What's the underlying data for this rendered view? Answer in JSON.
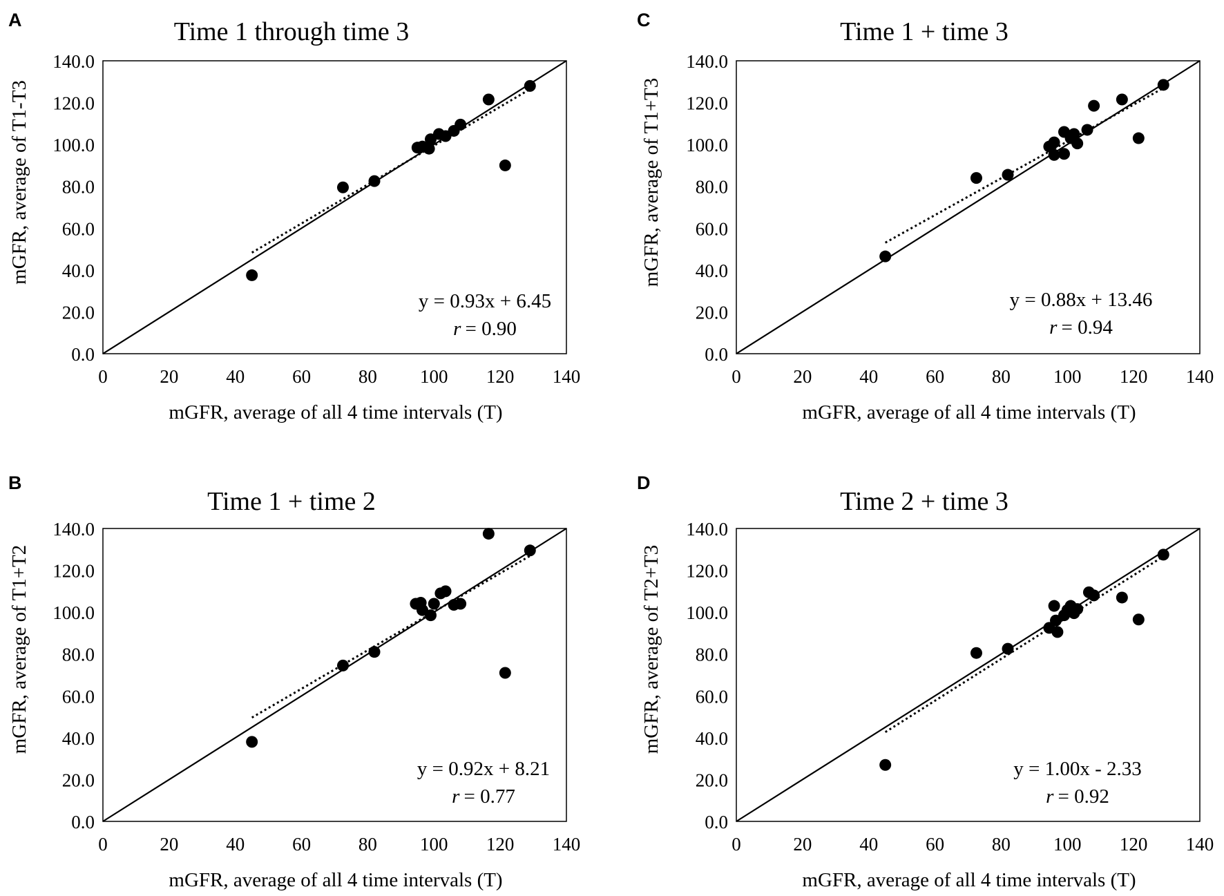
{
  "figure": {
    "panels": [
      {
        "letter": "A",
        "eq_pre": "y = ",
        "eq_slope": "0.93",
        "eq_sign": " + ",
        "eq_int": "6.45",
        "r_label": "r",
        "r_value": "= 0.90"
      },
      {
        "letter": "C",
        "eq_pre": "y = ",
        "eq_slope": "0.88",
        "eq_sign": " + ",
        "eq_int": "13.46",
        "r_label": "r",
        "r_value": "= 0.94"
      },
      {
        "letter": "B",
        "eq_pre": "y = ",
        "eq_slope": "0.92",
        "eq_sign": " + ",
        "eq_int": "8.21",
        "r_label": "r",
        "r_value": "= 0.77"
      },
      {
        "letter": "D",
        "eq_pre": "y = ",
        "eq_slope": "1.00",
        "eq_sign": " - ",
        "eq_int": "2.33",
        "r_label": "r",
        "r_value": "= 0.92"
      }
    ]
  },
  "chart_data": [
    {
      "type": "scatter",
      "title": "Time 1 through time 3",
      "xlabel": "mGFR, average of all 4 time intervals (T)",
      "ylabel": "mGFR, average of T1-T3",
      "xlim": [
        0,
        140
      ],
      "ylim": [
        0,
        140
      ],
      "xticks": [
        "0",
        "20",
        "40",
        "60",
        "80",
        "100",
        "120",
        "140"
      ],
      "yticks": [
        "0.0",
        "20.0",
        "40.0",
        "60.0",
        "80.0",
        "100.0",
        "120.0",
        "140.0"
      ],
      "equation": "y = 0.93x + 6.45",
      "r": "0.90",
      "identity_line": true,
      "trendline": {
        "slope": 0.93,
        "intercept": 6.45,
        "x_range": [
          45,
          129
        ]
      },
      "points": [
        {
          "x": 45,
          "y": 37.5
        },
        {
          "x": 72.5,
          "y": 79.5
        },
        {
          "x": 82,
          "y": 82.5
        },
        {
          "x": 95,
          "y": 98.5
        },
        {
          "x": 96.5,
          "y": 99
        },
        {
          "x": 98.5,
          "y": 98
        },
        {
          "x": 99,
          "y": 102.5
        },
        {
          "x": 101.5,
          "y": 105
        },
        {
          "x": 103.5,
          "y": 104
        },
        {
          "x": 106,
          "y": 106.5
        },
        {
          "x": 108,
          "y": 109.5
        },
        {
          "x": 116.5,
          "y": 121.5
        },
        {
          "x": 121.5,
          "y": 90
        },
        {
          "x": 129,
          "y": 128
        }
      ]
    },
    {
      "type": "scatter",
      "title": "Time 1 + time 3",
      "xlabel": "mGFR, average of all 4 time intervals (T)",
      "ylabel": "mGFR, average of T1+T3",
      "xlim": [
        0,
        140
      ],
      "ylim": [
        0,
        140
      ],
      "xticks": [
        "0",
        "20",
        "40",
        "60",
        "80",
        "100",
        "120",
        "140"
      ],
      "yticks": [
        "0.0",
        "20.0",
        "40.0",
        "60.0",
        "80.0",
        "100.0",
        "120.0",
        "140.0"
      ],
      "equation": "y = 0.88x + 13.46",
      "r": "0.94",
      "identity_line": true,
      "trendline": {
        "slope": 0.88,
        "intercept": 13.46,
        "x_range": [
          45,
          129
        ]
      },
      "points": [
        {
          "x": 45,
          "y": 46.5
        },
        {
          "x": 72.5,
          "y": 84
        },
        {
          "x": 82,
          "y": 85.5
        },
        {
          "x": 94.5,
          "y": 99
        },
        {
          "x": 96,
          "y": 101
        },
        {
          "x": 96,
          "y": 95
        },
        {
          "x": 99,
          "y": 106
        },
        {
          "x": 99,
          "y": 95.5
        },
        {
          "x": 101,
          "y": 103
        },
        {
          "x": 102,
          "y": 105
        },
        {
          "x": 103,
          "y": 100.5
        },
        {
          "x": 106,
          "y": 107
        },
        {
          "x": 108,
          "y": 118.5
        },
        {
          "x": 116.5,
          "y": 121.5
        },
        {
          "x": 121.5,
          "y": 103
        },
        {
          "x": 129,
          "y": 128.5
        }
      ]
    },
    {
      "type": "scatter",
      "title": "Time 1 + time 2",
      "xlabel": "mGFR, average of all 4 time intervals (T)",
      "ylabel": "mGFR, average of T1+T2",
      "xlim": [
        0,
        140
      ],
      "ylim": [
        0,
        140
      ],
      "xticks": [
        "0",
        "20",
        "40",
        "60",
        "80",
        "100",
        "120",
        "140"
      ],
      "yticks": [
        "0.0",
        "20.0",
        "40.0",
        "60.0",
        "80.0",
        "100.0",
        "120.0",
        "140.0"
      ],
      "equation": "y = 0.92x + 8.21",
      "r": "0.77",
      "identity_line": true,
      "trendline": {
        "slope": 0.92,
        "intercept": 8.21,
        "x_range": [
          45,
          129
        ]
      },
      "points": [
        {
          "x": 45,
          "y": 38
        },
        {
          "x": 72.5,
          "y": 74.5
        },
        {
          "x": 82,
          "y": 81
        },
        {
          "x": 94.5,
          "y": 104
        },
        {
          "x": 96,
          "y": 104.5
        },
        {
          "x": 96.5,
          "y": 101
        },
        {
          "x": 99,
          "y": 98.5
        },
        {
          "x": 100,
          "y": 104
        },
        {
          "x": 102,
          "y": 109
        },
        {
          "x": 103.5,
          "y": 110
        },
        {
          "x": 106,
          "y": 103.5
        },
        {
          "x": 108,
          "y": 104
        },
        {
          "x": 116.5,
          "y": 137.5
        },
        {
          "x": 121.5,
          "y": 71
        },
        {
          "x": 129,
          "y": 129.5
        }
      ]
    },
    {
      "type": "scatter",
      "title": "Time 2 + time 3",
      "xlabel": "mGFR, average of all 4 time intervals (T)",
      "ylabel": "mGFR, average of T2+T3",
      "xlim": [
        0,
        140
      ],
      "ylim": [
        0,
        140
      ],
      "xticks": [
        "0",
        "20",
        "40",
        "60",
        "80",
        "100",
        "120",
        "140"
      ],
      "yticks": [
        "0.0",
        "20.0",
        "40.0",
        "60.0",
        "80.0",
        "100.0",
        "120.0",
        "140.0"
      ],
      "equation": "y = 1.00x - 2.33",
      "r": "0.92",
      "identity_line": true,
      "trendline": {
        "slope": 1.0,
        "intercept": -2.33,
        "x_range": [
          45,
          129
        ]
      },
      "points": [
        {
          "x": 45,
          "y": 27
        },
        {
          "x": 72.5,
          "y": 80.5
        },
        {
          "x": 82,
          "y": 82.5
        },
        {
          "x": 94.5,
          "y": 92.5
        },
        {
          "x": 96,
          "y": 103
        },
        {
          "x": 96.5,
          "y": 96
        },
        {
          "x": 97,
          "y": 90.5
        },
        {
          "x": 99,
          "y": 98.5
        },
        {
          "x": 100,
          "y": 101
        },
        {
          "x": 101,
          "y": 103
        },
        {
          "x": 102,
          "y": 99.5
        },
        {
          "x": 103,
          "y": 101.5
        },
        {
          "x": 106.5,
          "y": 109.5
        },
        {
          "x": 108,
          "y": 108
        },
        {
          "x": 116.5,
          "y": 107
        },
        {
          "x": 121.5,
          "y": 96.5
        },
        {
          "x": 129,
          "y": 127.5
        }
      ]
    }
  ]
}
